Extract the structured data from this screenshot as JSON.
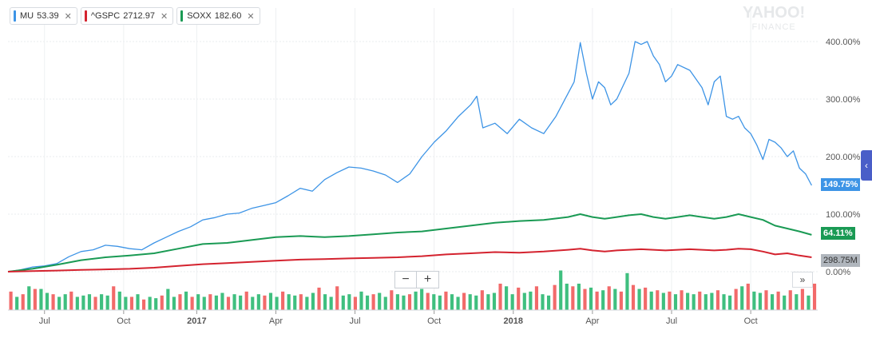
{
  "legend": {
    "items": [
      {
        "symbol": "MU",
        "value": "53.39",
        "color": "#3d94e6"
      },
      {
        "symbol": "^GSPC",
        "value": "2712.97",
        "color": "#d4232f"
      },
      {
        "symbol": "SOXX",
        "value": "182.60",
        "color": "#1a9a54"
      }
    ],
    "close_glyph": "✕"
  },
  "watermark": {
    "line1": "YAHOO!",
    "line2": "FINANCE"
  },
  "controls": {
    "zoom_out": "−",
    "zoom_in": "+",
    "scroll_forward": "»",
    "side_tab": "‹"
  },
  "tags": {
    "mu": "149.75%",
    "soxx": "64.11%",
    "volume": "298.75M"
  },
  "chart_data": {
    "type": "line",
    "y_unit": "percent change",
    "ylim": [
      -20,
      460
    ],
    "y_ticks": [
      "0.00%",
      "100.00%",
      "200.00%",
      "300.00%",
      "400.00%"
    ],
    "x_tick_labels": [
      "Jul",
      "Oct",
      "2017",
      "Apr",
      "Jul",
      "Oct",
      "2018",
      "Apr",
      "Jul",
      "Oct"
    ],
    "x_tick_positions": [
      6,
      19,
      31,
      44,
      57,
      70,
      83,
      96,
      109,
      122
    ],
    "x_count": 134,
    "series": [
      {
        "name": "MU",
        "color": "#3d94e6",
        "points": [
          [
            0,
            0
          ],
          [
            2,
            3
          ],
          [
            4,
            8
          ],
          [
            6,
            10
          ],
          [
            8,
            14
          ],
          [
            10,
            26
          ],
          [
            12,
            35
          ],
          [
            14,
            38
          ],
          [
            16,
            46
          ],
          [
            18,
            44
          ],
          [
            20,
            40
          ],
          [
            22,
            38
          ],
          [
            24,
            50
          ],
          [
            26,
            60
          ],
          [
            28,
            70
          ],
          [
            30,
            78
          ],
          [
            32,
            90
          ],
          [
            34,
            94
          ],
          [
            36,
            100
          ],
          [
            38,
            102
          ],
          [
            40,
            110
          ],
          [
            42,
            115
          ],
          [
            44,
            120
          ],
          [
            46,
            132
          ],
          [
            48,
            145
          ],
          [
            50,
            140
          ],
          [
            52,
            160
          ],
          [
            54,
            172
          ],
          [
            56,
            182
          ],
          [
            58,
            180
          ],
          [
            60,
            175
          ],
          [
            62,
            168
          ],
          [
            64,
            155
          ],
          [
            66,
            170
          ],
          [
            68,
            200
          ],
          [
            70,
            225
          ],
          [
            72,
            245
          ],
          [
            74,
            270
          ],
          [
            76,
            290
          ],
          [
            77,
            305
          ],
          [
            78,
            250
          ],
          [
            80,
            258
          ],
          [
            82,
            240
          ],
          [
            84,
            265
          ],
          [
            86,
            250
          ],
          [
            88,
            240
          ],
          [
            90,
            270
          ],
          [
            92,
            310
          ],
          [
            93,
            330
          ],
          [
            94,
            398
          ],
          [
            95,
            345
          ],
          [
            96,
            300
          ],
          [
            97,
            330
          ],
          [
            98,
            320
          ],
          [
            99,
            290
          ],
          [
            100,
            300
          ],
          [
            102,
            345
          ],
          [
            103,
            400
          ],
          [
            104,
            395
          ],
          [
            105,
            400
          ],
          [
            106,
            375
          ],
          [
            107,
            360
          ],
          [
            108,
            330
          ],
          [
            109,
            340
          ],
          [
            110,
            360
          ],
          [
            112,
            350
          ],
          [
            114,
            320
          ],
          [
            115,
            290
          ],
          [
            116,
            330
          ],
          [
            117,
            340
          ],
          [
            118,
            270
          ],
          [
            119,
            265
          ],
          [
            120,
            270
          ],
          [
            121,
            250
          ],
          [
            122,
            240
          ],
          [
            123,
            220
          ],
          [
            124,
            195
          ],
          [
            125,
            230
          ],
          [
            126,
            225
          ],
          [
            127,
            215
          ],
          [
            128,
            200
          ],
          [
            129,
            210
          ],
          [
            130,
            180
          ],
          [
            131,
            170
          ],
          [
            132,
            150
          ]
        ]
      },
      {
        "name": "SOXX",
        "color": "#1a9a54",
        "points": [
          [
            0,
            0
          ],
          [
            4,
            5
          ],
          [
            8,
            12
          ],
          [
            12,
            20
          ],
          [
            16,
            25
          ],
          [
            20,
            28
          ],
          [
            24,
            32
          ],
          [
            28,
            40
          ],
          [
            32,
            48
          ],
          [
            36,
            50
          ],
          [
            40,
            55
          ],
          [
            44,
            60
          ],
          [
            48,
            62
          ],
          [
            52,
            60
          ],
          [
            56,
            62
          ],
          [
            60,
            65
          ],
          [
            64,
            68
          ],
          [
            68,
            70
          ],
          [
            72,
            75
          ],
          [
            76,
            80
          ],
          [
            80,
            85
          ],
          [
            84,
            88
          ],
          [
            88,
            90
          ],
          [
            92,
            95
          ],
          [
            94,
            100
          ],
          [
            96,
            95
          ],
          [
            98,
            92
          ],
          [
            100,
            95
          ],
          [
            102,
            98
          ],
          [
            104,
            100
          ],
          [
            106,
            95
          ],
          [
            108,
            92
          ],
          [
            110,
            95
          ],
          [
            112,
            98
          ],
          [
            114,
            95
          ],
          [
            116,
            92
          ],
          [
            118,
            95
          ],
          [
            120,
            100
          ],
          [
            122,
            95
          ],
          [
            124,
            90
          ],
          [
            126,
            80
          ],
          [
            128,
            75
          ],
          [
            130,
            70
          ],
          [
            132,
            64
          ]
        ]
      },
      {
        "name": "^GSPC",
        "color": "#d4232f",
        "points": [
          [
            0,
            0
          ],
          [
            4,
            1
          ],
          [
            8,
            2
          ],
          [
            12,
            3
          ],
          [
            16,
            4
          ],
          [
            20,
            5
          ],
          [
            24,
            7
          ],
          [
            28,
            10
          ],
          [
            32,
            13
          ],
          [
            36,
            15
          ],
          [
            40,
            17
          ],
          [
            44,
            19
          ],
          [
            48,
            21
          ],
          [
            52,
            22
          ],
          [
            56,
            23
          ],
          [
            60,
            24
          ],
          [
            64,
            25
          ],
          [
            68,
            27
          ],
          [
            72,
            30
          ],
          [
            76,
            32
          ],
          [
            80,
            34
          ],
          [
            84,
            33
          ],
          [
            88,
            35
          ],
          [
            92,
            38
          ],
          [
            94,
            40
          ],
          [
            96,
            37
          ],
          [
            98,
            35
          ],
          [
            100,
            37
          ],
          [
            102,
            38
          ],
          [
            104,
            39
          ],
          [
            106,
            38
          ],
          [
            108,
            37
          ],
          [
            110,
            38
          ],
          [
            112,
            39
          ],
          [
            114,
            38
          ],
          [
            116,
            37
          ],
          [
            118,
            38
          ],
          [
            120,
            40
          ],
          [
            122,
            39
          ],
          [
            124,
            35
          ],
          [
            126,
            30
          ],
          [
            128,
            32
          ],
          [
            130,
            28
          ],
          [
            132,
            25
          ]
        ]
      }
    ],
    "volume": {
      "max_millions": 300,
      "bars": [
        [
          "r",
          0.7
        ],
        [
          "g",
          0.5
        ],
        [
          "r",
          0.6
        ],
        [
          "g",
          0.9
        ],
        [
          "r",
          0.8
        ],
        [
          "g",
          0.8
        ],
        [
          "g",
          0.65
        ],
        [
          "r",
          0.6
        ],
        [
          "g",
          0.5
        ],
        [
          "g",
          0.6
        ],
        [
          "r",
          0.7
        ],
        [
          "g",
          0.5
        ],
        [
          "g",
          0.55
        ],
        [
          "g",
          0.6
        ],
        [
          "r",
          0.5
        ],
        [
          "g",
          0.6
        ],
        [
          "g",
          0.55
        ],
        [
          "r",
          0.9
        ],
        [
          "g",
          0.7
        ],
        [
          "g",
          0.5
        ],
        [
          "r",
          0.5
        ],
        [
          "g",
          0.6
        ],
        [
          "r",
          0.4
        ],
        [
          "g",
          0.5
        ],
        [
          "g",
          0.45
        ],
        [
          "r",
          0.55
        ],
        [
          "g",
          0.8
        ],
        [
          "g",
          0.5
        ],
        [
          "r",
          0.6
        ],
        [
          "g",
          0.7
        ],
        [
          "r",
          0.5
        ],
        [
          "g",
          0.6
        ],
        [
          "g",
          0.5
        ],
        [
          "r",
          0.6
        ],
        [
          "g",
          0.55
        ],
        [
          "g",
          0.65
        ],
        [
          "r",
          0.5
        ],
        [
          "g",
          0.6
        ],
        [
          "g",
          0.55
        ],
        [
          "r",
          0.7
        ],
        [
          "g",
          0.5
        ],
        [
          "g",
          0.6
        ],
        [
          "r",
          0.55
        ],
        [
          "g",
          0.65
        ],
        [
          "g",
          0.5
        ],
        [
          "r",
          0.7
        ],
        [
          "g",
          0.6
        ],
        [
          "g",
          0.55
        ],
        [
          "r",
          0.6
        ],
        [
          "g",
          0.5
        ],
        [
          "g",
          0.65
        ],
        [
          "r",
          0.85
        ],
        [
          "g",
          0.6
        ],
        [
          "g",
          0.5
        ],
        [
          "r",
          0.9
        ],
        [
          "g",
          0.55
        ],
        [
          "g",
          0.6
        ],
        [
          "r",
          0.5
        ],
        [
          "g",
          0.7
        ],
        [
          "g",
          0.55
        ],
        [
          "r",
          0.6
        ],
        [
          "g",
          0.65
        ],
        [
          "g",
          0.5
        ],
        [
          "r",
          0.75
        ],
        [
          "g",
          0.6
        ],
        [
          "g",
          0.55
        ],
        [
          "r",
          0.6
        ],
        [
          "g",
          0.7
        ],
        [
          "g",
          0.8
        ],
        [
          "r",
          0.65
        ],
        [
          "g",
          0.6
        ],
        [
          "g",
          0.55
        ],
        [
          "r",
          0.7
        ],
        [
          "g",
          0.6
        ],
        [
          "g",
          0.5
        ],
        [
          "r",
          0.65
        ],
        [
          "g",
          0.6
        ],
        [
          "g",
          0.55
        ],
        [
          "r",
          0.75
        ],
        [
          "g",
          0.6
        ],
        [
          "g",
          0.65
        ],
        [
          "r",
          1.0
        ],
        [
          "g",
          0.9
        ],
        [
          "g",
          0.6
        ],
        [
          "r",
          0.85
        ],
        [
          "g",
          0.65
        ],
        [
          "g",
          0.7
        ],
        [
          "r",
          0.9
        ],
        [
          "g",
          0.6
        ],
        [
          "g",
          0.55
        ],
        [
          "r",
          0.95
        ],
        [
          "g",
          1.5
        ],
        [
          "g",
          1.0
        ],
        [
          "r",
          0.9
        ],
        [
          "g",
          1.0
        ],
        [
          "r",
          0.8
        ],
        [
          "g",
          0.85
        ],
        [
          "r",
          0.7
        ],
        [
          "g",
          0.75
        ],
        [
          "r",
          0.9
        ],
        [
          "g",
          0.8
        ],
        [
          "r",
          0.7
        ],
        [
          "g",
          1.4
        ],
        [
          "r",
          0.95
        ],
        [
          "g",
          0.8
        ],
        [
          "r",
          0.85
        ],
        [
          "g",
          0.7
        ],
        [
          "r",
          0.75
        ],
        [
          "g",
          0.65
        ],
        [
          "r",
          0.7
        ],
        [
          "g",
          0.6
        ],
        [
          "r",
          0.75
        ],
        [
          "g",
          0.65
        ],
        [
          "g",
          0.6
        ],
        [
          "r",
          0.7
        ],
        [
          "g",
          0.6
        ],
        [
          "g",
          0.65
        ],
        [
          "r",
          0.75
        ],
        [
          "g",
          0.6
        ],
        [
          "g",
          0.55
        ],
        [
          "r",
          0.8
        ],
        [
          "g",
          0.9
        ],
        [
          "r",
          1.0
        ],
        [
          "g",
          0.7
        ],
        [
          "g",
          0.65
        ],
        [
          "r",
          0.75
        ],
        [
          "g",
          0.6
        ],
        [
          "r",
          0.7
        ],
        [
          "g",
          0.55
        ],
        [
          "r",
          0.75
        ],
        [
          "g",
          0.6
        ],
        [
          "r",
          0.8
        ],
        [
          "g",
          0.55
        ],
        [
          "r",
          1.0
        ]
      ]
    }
  }
}
